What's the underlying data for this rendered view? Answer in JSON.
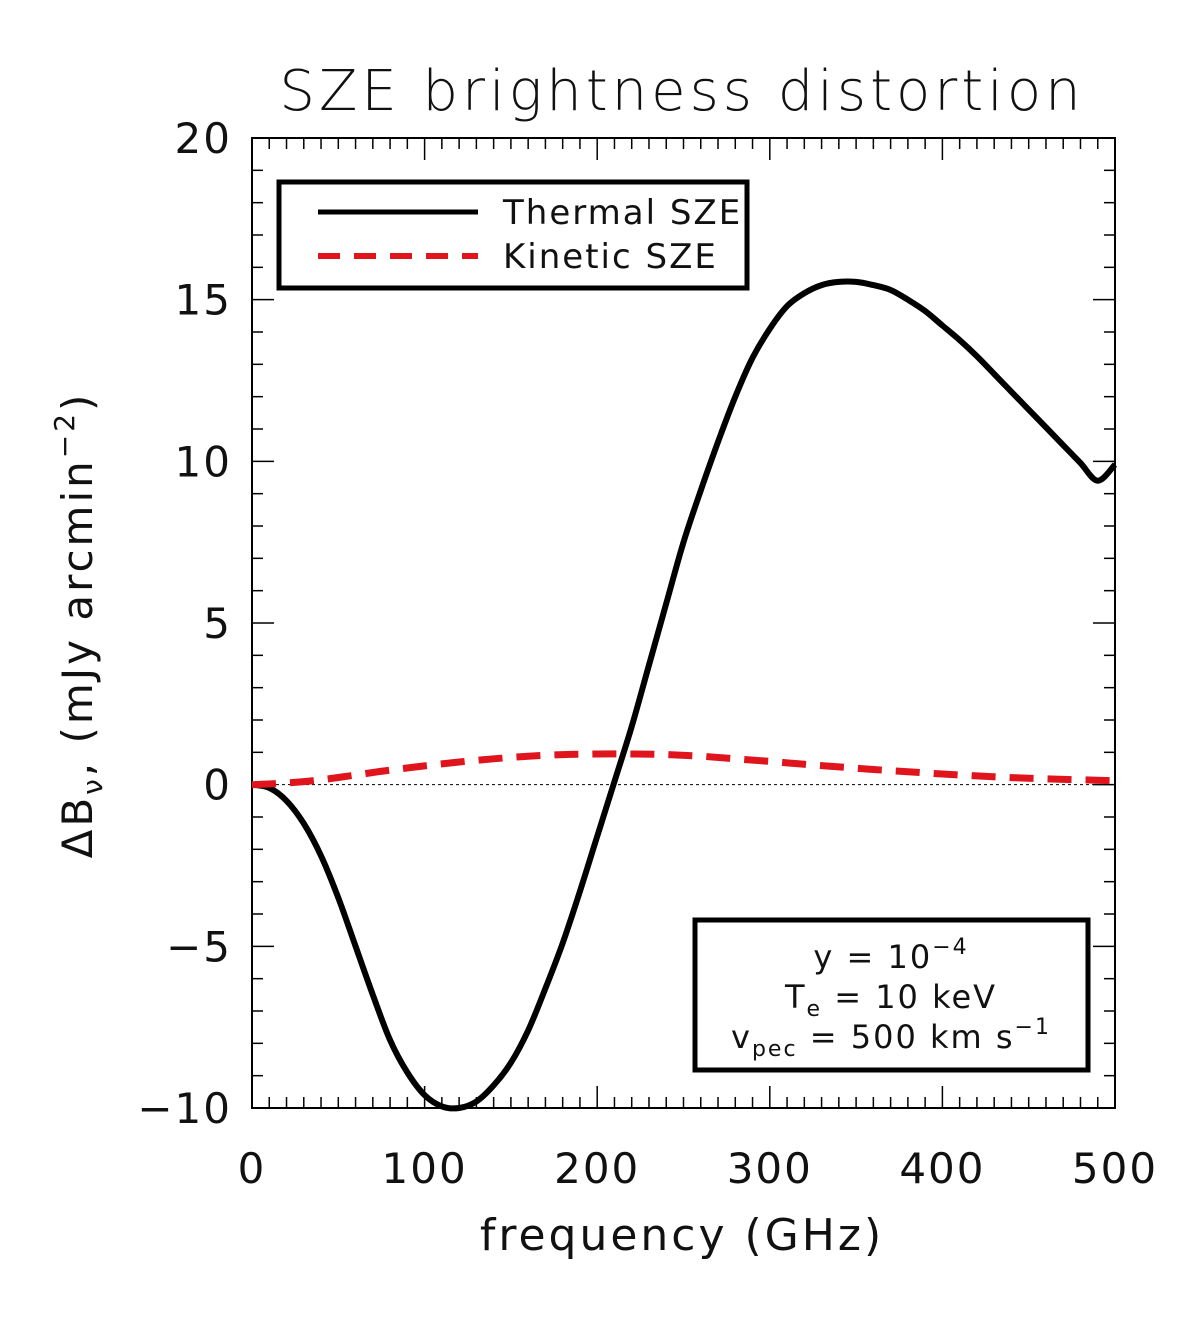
{
  "chart_data": {
    "type": "line",
    "title": "SZE brightness distortion",
    "xlabel": "frequency (GHz)",
    "ylabel": {
      "main": "ΔB",
      "sub": "ν",
      "tail": ", (mJy arcmin",
      "sup": "−2",
      "close": ")"
    },
    "xlim": [
      0,
      500
    ],
    "ylim": [
      -10,
      20
    ],
    "x_ticks": [
      {
        "value": 0,
        "label": "0"
      },
      {
        "value": 100,
        "label": "100"
      },
      {
        "value": 200,
        "label": "200"
      },
      {
        "value": 300,
        "label": "300"
      },
      {
        "value": 400,
        "label": "400"
      },
      {
        "value": 500,
        "label": "500"
      }
    ],
    "y_ticks": [
      {
        "value": -10,
        "label": "−10"
      },
      {
        "value": -5,
        "label": "−5"
      },
      {
        "value": 0,
        "label": "0"
      },
      {
        "value": 5,
        "label": "5"
      },
      {
        "value": 10,
        "label": "10"
      },
      {
        "value": 15,
        "label": "15"
      },
      {
        "value": 20,
        "label": "20"
      }
    ],
    "zero_line": true,
    "legend_position": "top-left",
    "series": [
      {
        "name": "Thermal SZE",
        "color": "#000000",
        "style": "solid",
        "x": [
          0,
          10,
          20,
          30,
          40,
          50,
          60,
          70,
          80,
          90,
          100,
          110,
          120,
          130,
          140,
          150,
          160,
          170,
          180,
          190,
          200,
          210,
          220,
          230,
          240,
          250,
          260,
          270,
          280,
          290,
          300,
          310,
          320,
          330,
          340,
          350,
          360,
          370,
          380,
          390,
          400,
          410,
          420,
          430,
          440,
          450,
          460,
          470,
          480,
          490,
          500
        ],
        "y": [
          0,
          -0.1,
          -0.5,
          -1.2,
          -2.2,
          -3.5,
          -5.0,
          -6.5,
          -7.9,
          -8.9,
          -9.6,
          -9.95,
          -10.0,
          -9.8,
          -9.3,
          -8.6,
          -7.6,
          -6.3,
          -4.9,
          -3.3,
          -1.6,
          0.1,
          1.8,
          3.7,
          5.6,
          7.5,
          9.1,
          10.6,
          12.0,
          13.2,
          14.1,
          14.8,
          15.2,
          15.45,
          15.55,
          15.55,
          15.45,
          15.3,
          15.0,
          14.65,
          14.2,
          13.75,
          13.25,
          12.7,
          12.15,
          11.6,
          11.05,
          10.5,
          9.95,
          9.4,
          9.9
        ]
      },
      {
        "name": "Kinetic SZE",
        "color": "#e0141c",
        "style": "dashed",
        "x": [
          0,
          20,
          40,
          60,
          80,
          100,
          120,
          140,
          160,
          180,
          200,
          220,
          240,
          260,
          280,
          300,
          320,
          340,
          360,
          380,
          400,
          420,
          440,
          460,
          480,
          500
        ],
        "y": [
          0,
          0.05,
          0.15,
          0.3,
          0.45,
          0.58,
          0.7,
          0.8,
          0.88,
          0.93,
          0.95,
          0.95,
          0.93,
          0.88,
          0.8,
          0.72,
          0.63,
          0.55,
          0.47,
          0.4,
          0.33,
          0.27,
          0.22,
          0.18,
          0.15,
          0.12
        ]
      }
    ],
    "annotation": {
      "lines": [
        {
          "a": "y = 10",
          "sup": "−4"
        },
        {
          "a": "T",
          "sub": "e",
          "b": " = 10 keV"
        },
        {
          "a": "v",
          "sub": "pec",
          "b": " = 500 km s",
          "sup": "−1"
        }
      ],
      "position": "bottom-right"
    }
  }
}
